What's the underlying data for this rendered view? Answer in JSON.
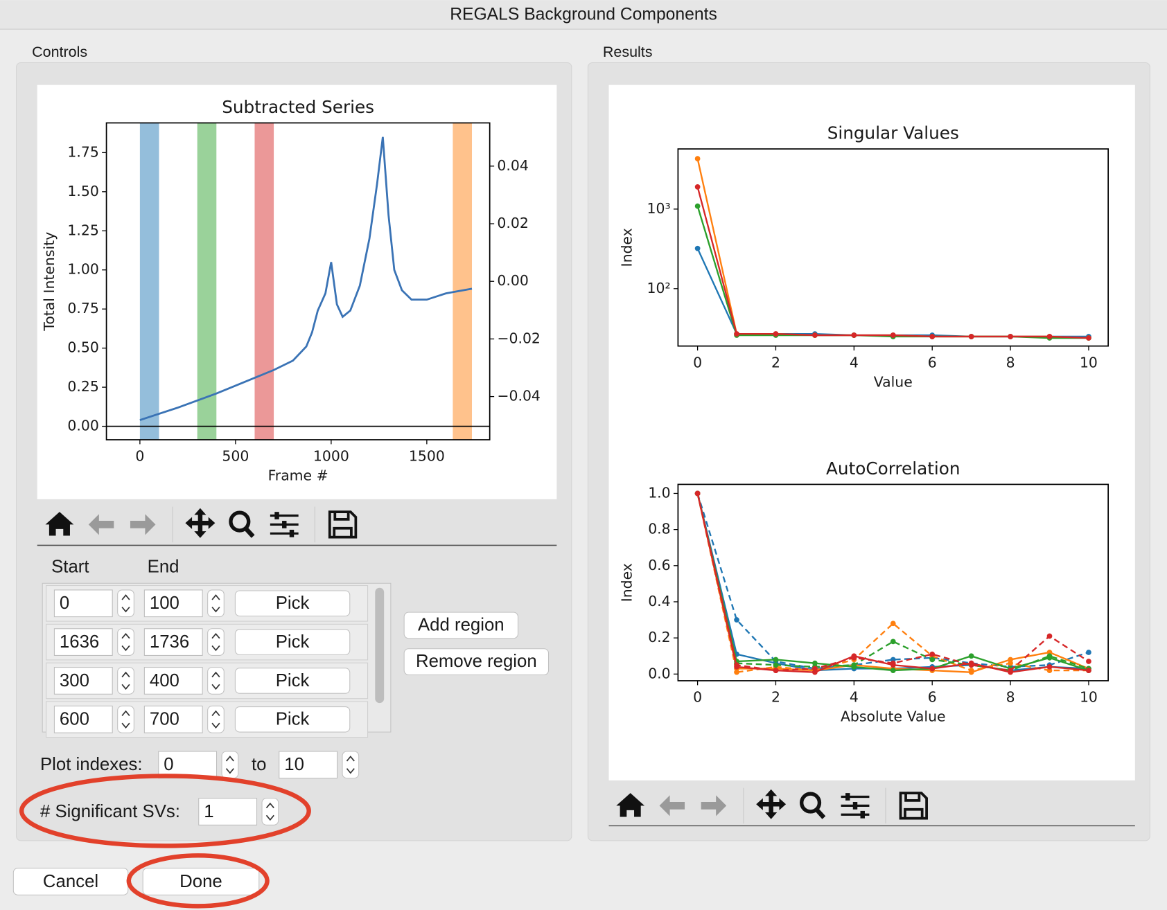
{
  "window": {
    "title": "REGALS Background Components"
  },
  "controls": {
    "label": "Controls",
    "headers": [
      "Start",
      "End"
    ],
    "regions": [
      {
        "start": 0,
        "end": 100,
        "color": "#1f77b4"
      },
      {
        "start": 1636,
        "end": 1736,
        "color": "#ff7f0e"
      },
      {
        "start": 300,
        "end": 400,
        "color": "#2ca02c"
      },
      {
        "start": 600,
        "end": 700,
        "color": "#d62728"
      }
    ],
    "pick": "Pick",
    "add": "Add region",
    "remove": "Remove region",
    "plot_indexes": {
      "label": "Plot indexes:",
      "from": 0,
      "sep": "to",
      "to": 10
    },
    "sig_svs": {
      "label": "# Significant SVs:",
      "value": 1
    }
  },
  "results": {
    "label": "Results"
  },
  "buttons": {
    "cancel": "Cancel",
    "done": "Done"
  },
  "chart_data": [
    {
      "type": "line",
      "title": "Subtracted Series",
      "xlabel": "Frame #",
      "ylabel": "Total Intensity",
      "x": [
        0,
        200,
        400,
        600,
        700,
        800,
        870,
        900,
        930,
        970,
        1000,
        1030,
        1060,
        1100,
        1150,
        1200,
        1240,
        1270,
        1300,
        1330,
        1370,
        1420,
        1500,
        1600,
        1736
      ],
      "series": [
        {
          "color": "#3a73b5",
          "values": [
            0.04,
            0.12,
            0.21,
            0.31,
            0.36,
            0.42,
            0.51,
            0.6,
            0.74,
            0.85,
            1.05,
            0.78,
            0.7,
            0.74,
            0.9,
            1.2,
            1.55,
            1.85,
            1.35,
            1.0,
            0.87,
            0.81,
            0.81,
            0.85,
            0.88
          ]
        }
      ],
      "xlim": [
        -175,
        1829
      ],
      "xticks": [
        0,
        500,
        1000,
        1500
      ],
      "ylim": [
        -0.086,
        1.94
      ],
      "yticks": [
        {
          "value": 0,
          "label": "0.00"
        },
        {
          "value": 0.25,
          "label": "0.25"
        },
        {
          "value": 0.5,
          "label": "0.50"
        },
        {
          "value": 0.75,
          "label": "0.75"
        },
        {
          "value": 1,
          "label": "1.00"
        },
        {
          "value": 1.25,
          "label": "1.25"
        },
        {
          "value": 1.5,
          "label": "1.50"
        },
        {
          "value": 1.75,
          "label": "1.75"
        }
      ],
      "y2lim": [
        -0.055,
        0.055
      ],
      "y2ticks": [
        {
          "value": -0.04,
          "label": "−0.04"
        },
        {
          "value": -0.02,
          "label": "−0.02"
        },
        {
          "value": 0,
          "label": "0.00"
        },
        {
          "value": 0.02,
          "label": "0.02"
        },
        {
          "value": 0.04,
          "label": "0.04"
        }
      ],
      "zero_line": true,
      "shaded_regions": true,
      "markers": false
    },
    {
      "type": "line",
      "title": "Singular Values",
      "xlabel": "Value",
      "ylabel": "Index",
      "yscale": "log",
      "x": [
        0,
        1,
        2,
        3,
        4,
        5,
        6,
        7,
        8,
        9,
        10
      ],
      "series": [
        {
          "color": "#1f77b4",
          "values": [
            320,
            27,
            27,
            27,
            26,
            26,
            26,
            25,
            25,
            25,
            25
          ]
        },
        {
          "color": "#ff7f0e",
          "values": [
            4300,
            27,
            27,
            26,
            26,
            26,
            25,
            25,
            25,
            25,
            24
          ]
        },
        {
          "color": "#2ca02c",
          "values": [
            1090,
            26,
            26,
            26,
            26,
            25,
            25,
            25,
            25,
            24,
            24
          ]
        },
        {
          "color": "#d62728",
          "values": [
            1900,
            27,
            27,
            26,
            26,
            26,
            25,
            25,
            25,
            25,
            24
          ]
        }
      ],
      "xlim": [
        -0.5,
        10.5
      ],
      "xticks": [
        0,
        2,
        4,
        6,
        8,
        10
      ],
      "ylim": [
        19,
        5700
      ],
      "yticks": [
        {
          "value": 100,
          "label": "10²"
        },
        {
          "value": 1000,
          "label": "10³"
        }
      ],
      "markers": true
    },
    {
      "type": "line",
      "title": "AutoCorrelation",
      "xlabel": "Absolute Value",
      "ylabel": "Index",
      "x": [
        0,
        1,
        2,
        3,
        4,
        5,
        6,
        7,
        8,
        9,
        10
      ],
      "series": [
        {
          "color": "#1f77b4",
          "values": [
            1,
            0.11,
            0.06,
            0.02,
            0.03,
            0.03,
            0.04,
            0.05,
            0.02,
            0.04,
            0.03
          ]
        },
        {
          "color": "#1f77b4",
          "dashed": true,
          "values": [
            1,
            0.3,
            0.07,
            0.03,
            0.05,
            0.08,
            0.09,
            0.06,
            0.04,
            0.05,
            0.12
          ]
        },
        {
          "color": "#ff7f0e",
          "values": [
            1,
            0.03,
            0.03,
            0.02,
            0.05,
            0.03,
            0.02,
            0.01,
            0.08,
            0.12,
            0.03
          ]
        },
        {
          "color": "#ff7f0e",
          "dashed": true,
          "values": [
            1,
            0.01,
            0.04,
            0.02,
            0.08,
            0.28,
            0.1,
            0.02,
            0.06,
            0.02,
            0.02
          ]
        },
        {
          "color": "#2ca02c",
          "values": [
            1,
            0.07,
            0.08,
            0.06,
            0.04,
            0.02,
            0.03,
            0.1,
            0.03,
            0.09,
            0.02
          ]
        },
        {
          "color": "#2ca02c",
          "dashed": true,
          "values": [
            1,
            0.06,
            0.05,
            0.04,
            0.05,
            0.18,
            0.08,
            0.05,
            0.02,
            0.1,
            0.03
          ]
        },
        {
          "color": "#d62728",
          "values": [
            1,
            0.04,
            0.02,
            0.01,
            0.1,
            0.05,
            0.03,
            0.06,
            0.01,
            0.04,
            0.02
          ]
        },
        {
          "color": "#d62728",
          "dashed": true,
          "values": [
            1,
            0.05,
            0.02,
            0.03,
            0.09,
            0.06,
            0.11,
            0.05,
            0.02,
            0.21,
            0.07
          ]
        }
      ],
      "xlim": [
        -0.5,
        10.5
      ],
      "xticks": [
        0,
        2,
        4,
        6,
        8,
        10
      ],
      "ylim": [
        -0.037,
        1.05
      ],
      "yticks": [
        {
          "value": 0,
          "label": "0.0"
        },
        0.2,
        0.4,
        0.6,
        0.8,
        {
          "value": 1,
          "label": "1.0"
        }
      ],
      "markers": true
    }
  ]
}
